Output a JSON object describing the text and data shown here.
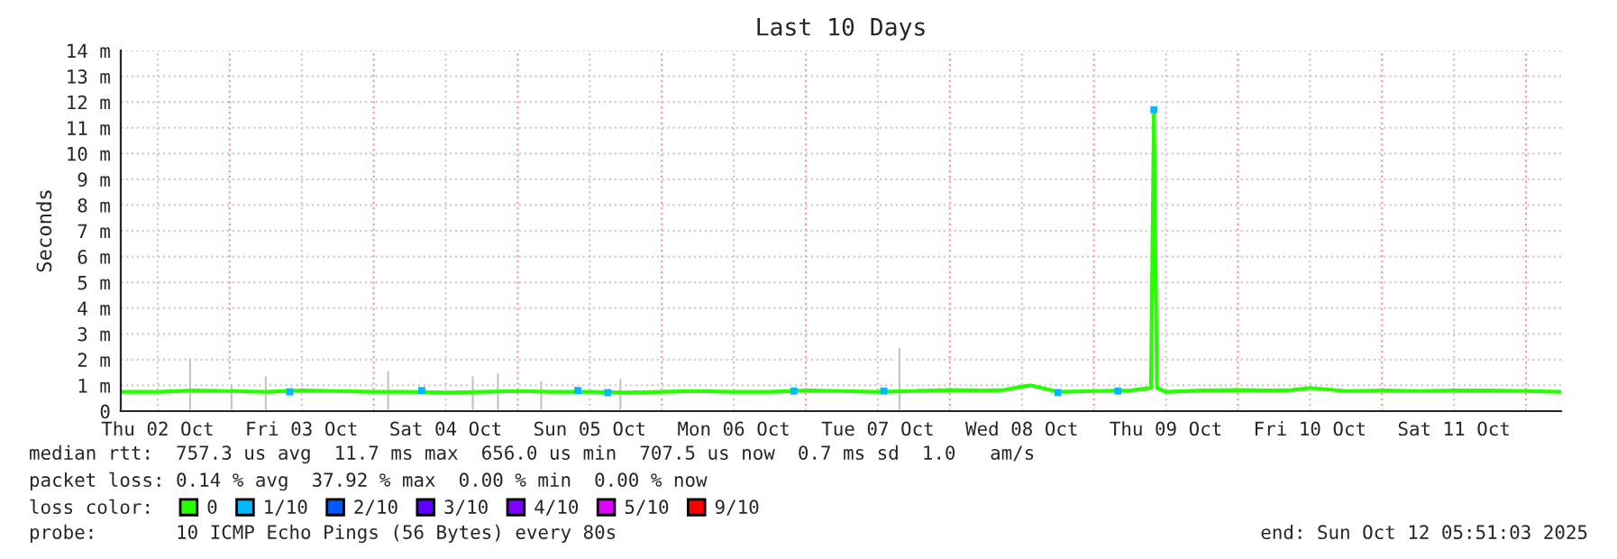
{
  "chart_data": {
    "type": "line",
    "title": "Last 10 Days",
    "ylabel": "Seconds",
    "xlim": [
      "2025-10-02T05:51",
      "2025-10-12T05:51"
    ],
    "ylim": [
      0,
      14
    ],
    "yticks": [
      {
        "value": 0,
        "label": "0"
      },
      {
        "value": 1,
        "label": "1 m"
      },
      {
        "value": 2,
        "label": "2 m"
      },
      {
        "value": 3,
        "label": "3 m"
      },
      {
        "value": 4,
        "label": "4 m"
      },
      {
        "value": 5,
        "label": "5 m"
      },
      {
        "value": 6,
        "label": "6 m"
      },
      {
        "value": 7,
        "label": "7 m"
      },
      {
        "value": 8,
        "label": "8 m"
      },
      {
        "value": 9,
        "label": "9 m"
      },
      {
        "value": 10,
        "label": "10 m"
      },
      {
        "value": 11,
        "label": "11 m"
      },
      {
        "value": 12,
        "label": "12 m"
      },
      {
        "value": 13,
        "label": "13 m"
      },
      {
        "value": 14,
        "label": "14 m"
      }
    ],
    "xticks": [
      {
        "value": "2025-10-02T12:00",
        "label": "Thu 02 Oct"
      },
      {
        "value": "2025-10-03T12:00",
        "label": "Fri 03 Oct"
      },
      {
        "value": "2025-10-04T12:00",
        "label": "Sat 04 Oct"
      },
      {
        "value": "2025-10-05T12:00",
        "label": "Sun 05 Oct"
      },
      {
        "value": "2025-10-06T12:00",
        "label": "Mon 06 Oct"
      },
      {
        "value": "2025-10-07T12:00",
        "label": "Tue 07 Oct"
      },
      {
        "value": "2025-10-08T12:00",
        "label": "Wed 08 Oct"
      },
      {
        "value": "2025-10-09T12:00",
        "label": "Thu 09 Oct"
      },
      {
        "value": "2025-10-10T12:00",
        "label": "Fri 10 Oct"
      },
      {
        "value": "2025-10-11T12:00",
        "label": "Sat 11 Oct"
      }
    ],
    "grid": true,
    "legend": "bottom",
    "ref_lines": [
      {
        "axis": "x",
        "value": "2025-10-03T00:00",
        "color": "#ff9999",
        "line_style": "dotted"
      },
      {
        "axis": "x",
        "value": "2025-10-04T00:00",
        "color": "#ff9999",
        "line_style": "dotted"
      },
      {
        "axis": "x",
        "value": "2025-10-05T00:00",
        "color": "#ff9999",
        "line_style": "dotted"
      },
      {
        "axis": "x",
        "value": "2025-10-06T00:00",
        "color": "#ff9999",
        "line_style": "dotted"
      },
      {
        "axis": "x",
        "value": "2025-10-07T00:00",
        "color": "#ff9999",
        "line_style": "dotted"
      },
      {
        "axis": "x",
        "value": "2025-10-08T00:00",
        "color": "#ff9999",
        "line_style": "dotted"
      },
      {
        "axis": "x",
        "value": "2025-10-09T00:00",
        "color": "#ff9999",
        "line_style": "dotted"
      },
      {
        "axis": "x",
        "value": "2025-10-10T00:00",
        "color": "#ff9999",
        "line_style": "dotted"
      },
      {
        "axis": "x",
        "value": "2025-10-11T00:00",
        "color": "#ff9999",
        "line_style": "dotted"
      },
      {
        "axis": "x",
        "value": "2025-10-12T00:00",
        "color": "#ff9999",
        "line_style": "dotted"
      }
    ],
    "series": [
      {
        "type": "bar",
        "color": "#c0c0c0",
        "x": [
          "2025-10-02T17:24",
          "2025-10-03T00:18",
          "2025-10-03T06:00",
          "2025-10-04T02:24",
          "2025-10-04T16:30",
          "2025-10-04T20:42",
          "2025-10-05T03:54",
          "2025-10-05T17:06",
          "2025-10-07T15:36"
        ],
        "values": [
          2.1,
          1.1,
          1.4,
          1.6,
          1.4,
          1.5,
          1.2,
          1.3,
          2.5
        ]
      },
      {
        "name": "0",
        "color": "#26ff00",
        "x": [
          "2025-10-02T05:51",
          "2025-10-02T12:00",
          "2025-10-02T18:00",
          "2025-10-03T00:00",
          "2025-10-03T06:00",
          "2025-10-03T12:00",
          "2025-10-03T18:00",
          "2025-10-04T00:00",
          "2025-10-04T06:00",
          "2025-10-04T12:00",
          "2025-10-04T18:00",
          "2025-10-05T00:00",
          "2025-10-05T06:00",
          "2025-10-05T12:00",
          "2025-10-05T18:00",
          "2025-10-06T00:00",
          "2025-10-06T06:00",
          "2025-10-06T12:00",
          "2025-10-06T18:00",
          "2025-10-07T00:00",
          "2025-10-07T06:00",
          "2025-10-07T12:00",
          "2025-10-07T18:00",
          "2025-10-08T00:00",
          "2025-10-08T06:00",
          "2025-10-08T09:00",
          "2025-10-08T12:00",
          "2025-10-08T13:30",
          "2025-10-08T18:00",
          "2025-10-09T00:00",
          "2025-10-09T06:00",
          "2025-10-09T09:30",
          "2025-10-09T10:00",
          "2025-10-09T10:30",
          "2025-10-09T12:00",
          "2025-10-09T18:00",
          "2025-10-10T00:00",
          "2025-10-10T06:00",
          "2025-10-10T09:00",
          "2025-10-10T12:00",
          "2025-10-10T18:00",
          "2025-10-11T00:00",
          "2025-10-11T06:00",
          "2025-10-11T12:00",
          "2025-10-11T18:00",
          "2025-10-12T00:00",
          "2025-10-12T05:51"
        ],
        "values": [
          0.75,
          0.75,
          0.8,
          0.78,
          0.75,
          0.8,
          0.78,
          0.75,
          0.75,
          0.72,
          0.75,
          0.78,
          0.75,
          0.75,
          0.72,
          0.75,
          0.78,
          0.75,
          0.75,
          0.8,
          0.78,
          0.75,
          0.78,
          0.82,
          0.8,
          0.82,
          0.95,
          1.0,
          0.75,
          0.78,
          0.8,
          0.9,
          11.6,
          0.9,
          0.75,
          0.8,
          0.82,
          0.8,
          0.82,
          0.9,
          0.78,
          0.8,
          0.78,
          0.8,
          0.8,
          0.78,
          0.75
        ]
      },
      {
        "name": "1/10",
        "type": "scatter",
        "color": "#00b8ff",
        "x": [
          "2025-10-03T10:00",
          "2025-10-04T08:00",
          "2025-10-05T10:00",
          "2025-10-05T15:00",
          "2025-10-06T22:00",
          "2025-10-07T13:00",
          "2025-10-08T18:00",
          "2025-10-09T04:00",
          "2025-10-09T10:00"
        ],
        "values": [
          0.75,
          0.8,
          0.8,
          0.72,
          0.78,
          0.78,
          0.72,
          0.78,
          11.7
        ]
      },
      {
        "name": "2/10",
        "color": "#0059ff"
      },
      {
        "name": "3/10",
        "color": "#5e00ff"
      },
      {
        "name": "4/10",
        "color": "#7e00ff"
      },
      {
        "name": "5/10",
        "color": "#dd00ff"
      },
      {
        "name": "9/10",
        "color": "#ff0000"
      }
    ],
    "annotations": [
      "median rtt:  757.3 us avg  11.7 ms max  656.0 us min  707.5 us now  0.7 ms sd  1.0   am/s",
      "packet loss: 0.14 % avg  37.92 % max  0.00 % min  0.00 % now",
      "loss color:",
      "probe:       10 ICMP Echo Pings (56 Bytes) every 80s",
      "end: Sun Oct 12 05:51:03 2025"
    ]
  }
}
